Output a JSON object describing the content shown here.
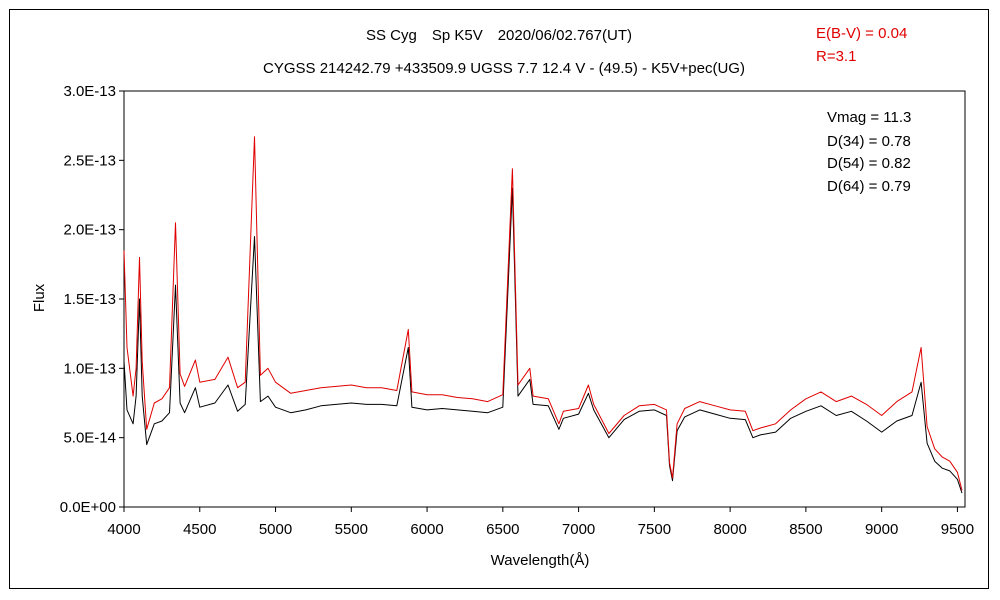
{
  "chart_data": {
    "type": "line",
    "title": "SS Cyg　Sp K5V　2020/06/02.767(UT)",
    "subtitle": "CYGSS 214242.79 +433509.9 UGSS 7.7 12.4 V - (49.5) - K5V+pec(UG)",
    "xlabel": "Wavelength(Å)",
    "ylabel": "Flux",
    "xlim": [
      4000,
      9550
    ],
    "ylim": [
      0,
      3e-13
    ],
    "x_ticks": [
      4000,
      4500,
      5000,
      5500,
      6000,
      6500,
      7000,
      7500,
      8000,
      8500,
      9000,
      9500
    ],
    "x_tick_labels": [
      "4000",
      "4500",
      "5000",
      "5500",
      "6000",
      "6500",
      "7000",
      "7500",
      "8000",
      "8500",
      "9000",
      "9500"
    ],
    "y_ticks": [
      0,
      5e-14,
      1e-13,
      1.5e-13,
      2e-13,
      2.5e-13,
      3e-13
    ],
    "y_tick_labels": [
      "0.0E+00",
      "5.0E-14",
      "1.0E-13",
      "1.5E-13",
      "2.0E-13",
      "2.5E-13",
      "3.0E-13"
    ],
    "grid": false,
    "legend": "none",
    "annotations_red": [
      "E(B-V) = 0.04",
      "R=3.1"
    ],
    "annotations_black": [
      "Vmag = 11.3",
      "D(34) = 0.78",
      "D(54) = 0.82",
      "D(64) = 0.79"
    ],
    "series": [
      {
        "color": "#000000",
        "points": [
          [
            4000,
            1.05e-13
          ],
          [
            4020,
            7e-14
          ],
          [
            4060,
            6e-14
          ],
          [
            4080,
            8e-14
          ],
          [
            4102,
            1.5e-13
          ],
          [
            4120,
            8e-14
          ],
          [
            4150,
            4.5e-14
          ],
          [
            4200,
            6e-14
          ],
          [
            4250,
            6.2e-14
          ],
          [
            4300,
            6.8e-14
          ],
          [
            4340,
            1.6e-13
          ],
          [
            4370,
            7.5e-14
          ],
          [
            4400,
            6.8e-14
          ],
          [
            4471,
            8.6e-14
          ],
          [
            4500,
            7.2e-14
          ],
          [
            4600,
            7.5e-14
          ],
          [
            4686,
            8.8e-14
          ],
          [
            4750,
            6.9e-14
          ],
          [
            4800,
            7.4e-14
          ],
          [
            4861,
            1.95e-13
          ],
          [
            4900,
            7.6e-14
          ],
          [
            4950,
            8e-14
          ],
          [
            5000,
            7.2e-14
          ],
          [
            5100,
            6.8e-14
          ],
          [
            5200,
            7e-14
          ],
          [
            5300,
            7.3e-14
          ],
          [
            5400,
            7.4e-14
          ],
          [
            5500,
            7.5e-14
          ],
          [
            5600,
            7.4e-14
          ],
          [
            5700,
            7.4e-14
          ],
          [
            5800,
            7.3e-14
          ],
          [
            5876,
            1.15e-13
          ],
          [
            5900,
            7.2e-14
          ],
          [
            6000,
            7e-14
          ],
          [
            6100,
            7.1e-14
          ],
          [
            6200,
            7e-14
          ],
          [
            6300,
            6.9e-14
          ],
          [
            6400,
            6.8e-14
          ],
          [
            6500,
            7.2e-14
          ],
          [
            6563,
            2.3e-13
          ],
          [
            6600,
            8e-14
          ],
          [
            6678,
            9.2e-14
          ],
          [
            6700,
            7.4e-14
          ],
          [
            6800,
            7.3e-14
          ],
          [
            6870,
            5.6e-14
          ],
          [
            6900,
            6.4e-14
          ],
          [
            7000,
            6.7e-14
          ],
          [
            7065,
            8.2e-14
          ],
          [
            7100,
            7e-14
          ],
          [
            7200,
            5e-14
          ],
          [
            7300,
            6.3e-14
          ],
          [
            7400,
            6.9e-14
          ],
          [
            7500,
            7e-14
          ],
          [
            7580,
            6.6e-14
          ],
          [
            7600,
            3e-14
          ],
          [
            7620,
            1.9e-14
          ],
          [
            7650,
            5.5e-14
          ],
          [
            7700,
            6.5e-14
          ],
          [
            7800,
            7e-14
          ],
          [
            7900,
            6.7e-14
          ],
          [
            8000,
            6.4e-14
          ],
          [
            8100,
            6.3e-14
          ],
          [
            8150,
            5e-14
          ],
          [
            8200,
            5.2e-14
          ],
          [
            8300,
            5.4e-14
          ],
          [
            8400,
            6.4e-14
          ],
          [
            8500,
            6.9e-14
          ],
          [
            8600,
            7.3e-14
          ],
          [
            8700,
            6.6e-14
          ],
          [
            8800,
            6.9e-14
          ],
          [
            8900,
            6.2e-14
          ],
          [
            9000,
            5.4e-14
          ],
          [
            9100,
            6.2e-14
          ],
          [
            9200,
            6.6e-14
          ],
          [
            9260,
            9e-14
          ],
          [
            9300,
            4.6e-14
          ],
          [
            9350,
            3.3e-14
          ],
          [
            9400,
            2.8e-14
          ],
          [
            9450,
            2.6e-14
          ],
          [
            9500,
            2e-14
          ],
          [
            9530,
            1e-14
          ]
        ]
      },
      {
        "color": "#e00000",
        "points": [
          [
            4000,
            1.85e-13
          ],
          [
            4020,
            1.15e-13
          ],
          [
            4060,
            8e-14
          ],
          [
            4080,
            1e-13
          ],
          [
            4102,
            1.8e-13
          ],
          [
            4120,
            1.05e-13
          ],
          [
            4150,
            5.6e-14
          ],
          [
            4200,
            7.5e-14
          ],
          [
            4250,
            7.8e-14
          ],
          [
            4300,
            8.6e-14
          ],
          [
            4340,
            2.05e-13
          ],
          [
            4370,
            9.6e-14
          ],
          [
            4400,
            8.7e-14
          ],
          [
            4471,
            1.06e-13
          ],
          [
            4500,
            9e-14
          ],
          [
            4600,
            9.2e-14
          ],
          [
            4686,
            1.08e-13
          ],
          [
            4750,
            8.6e-14
          ],
          [
            4800,
            9e-14
          ],
          [
            4861,
            2.67e-13
          ],
          [
            4900,
            9.5e-14
          ],
          [
            4950,
            1e-13
          ],
          [
            5000,
            9e-14
          ],
          [
            5100,
            8.2e-14
          ],
          [
            5200,
            8.4e-14
          ],
          [
            5300,
            8.6e-14
          ],
          [
            5400,
            8.7e-14
          ],
          [
            5500,
            8.8e-14
          ],
          [
            5600,
            8.6e-14
          ],
          [
            5700,
            8.6e-14
          ],
          [
            5800,
            8.4e-14
          ],
          [
            5876,
            1.28e-13
          ],
          [
            5900,
            8.3e-14
          ],
          [
            6000,
            8.1e-14
          ],
          [
            6100,
            8.1e-14
          ],
          [
            6200,
            7.9e-14
          ],
          [
            6300,
            7.8e-14
          ],
          [
            6400,
            7.6e-14
          ],
          [
            6500,
            8.1e-14
          ],
          [
            6563,
            2.44e-13
          ],
          [
            6600,
            8.8e-14
          ],
          [
            6678,
            1e-13
          ],
          [
            6700,
            8e-14
          ],
          [
            6800,
            7.8e-14
          ],
          [
            6870,
            6e-14
          ],
          [
            6900,
            6.9e-14
          ],
          [
            7000,
            7.1e-14
          ],
          [
            7065,
            8.8e-14
          ],
          [
            7100,
            7.4e-14
          ],
          [
            7200,
            5.3e-14
          ],
          [
            7300,
            6.6e-14
          ],
          [
            7400,
            7.3e-14
          ],
          [
            7500,
            7.4e-14
          ],
          [
            7580,
            7e-14
          ],
          [
            7600,
            3.2e-14
          ],
          [
            7620,
            2.1e-14
          ],
          [
            7650,
            6e-14
          ],
          [
            7700,
            7.1e-14
          ],
          [
            7800,
            7.6e-14
          ],
          [
            7900,
            7.3e-14
          ],
          [
            8000,
            7e-14
          ],
          [
            8100,
            6.9e-14
          ],
          [
            8150,
            5.5e-14
          ],
          [
            8200,
            5.7e-14
          ],
          [
            8300,
            6e-14
          ],
          [
            8400,
            7e-14
          ],
          [
            8500,
            7.8e-14
          ],
          [
            8600,
            8.3e-14
          ],
          [
            8700,
            7.6e-14
          ],
          [
            8800,
            8e-14
          ],
          [
            8900,
            7.4e-14
          ],
          [
            9000,
            6.6e-14
          ],
          [
            9100,
            7.6e-14
          ],
          [
            9200,
            8.3e-14
          ],
          [
            9260,
            1.15e-13
          ],
          [
            9300,
            5.8e-14
          ],
          [
            9350,
            4.2e-14
          ],
          [
            9400,
            3.6e-14
          ],
          [
            9450,
            3.3e-14
          ],
          [
            9500,
            2.5e-14
          ],
          [
            9530,
            1.2e-14
          ]
        ]
      }
    ]
  }
}
